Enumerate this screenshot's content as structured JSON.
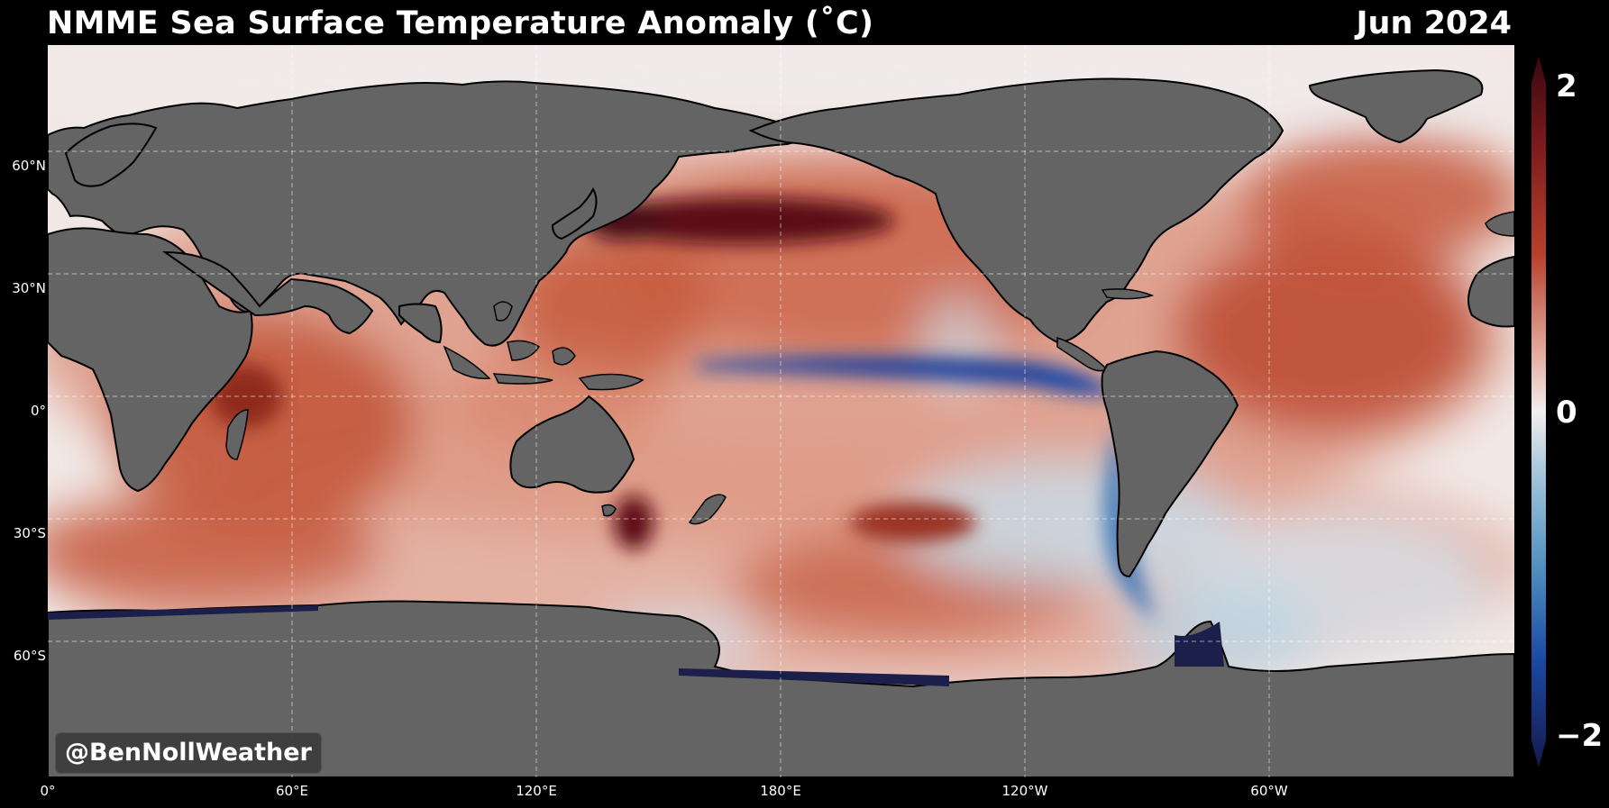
{
  "header": {
    "title": "NMME Sea Surface Temperature Anomaly (˚C)",
    "date": "Jun 2024"
  },
  "map": {
    "land_color": "#646464",
    "polar_ice_color": "#1c1f4a",
    "gridline_color": "#ffffff",
    "lat_labels": [
      "60°N",
      "30°N",
      "0°",
      "30°S",
      "60°S"
    ],
    "lon_labels": [
      "0°",
      "60°E",
      "120°E",
      "180°E",
      "120°W",
      "60°W"
    ]
  },
  "colorbar": {
    "labels": [
      "2",
      "0",
      "−2"
    ],
    "colors": {
      "max": "#4a0a10",
      "warm": "#b8412d",
      "neutral": "#f2eeee",
      "cool": "#4f8fc0",
      "min": "#141a4a"
    }
  },
  "watermark": {
    "text": "@BenNollWeather"
  }
}
